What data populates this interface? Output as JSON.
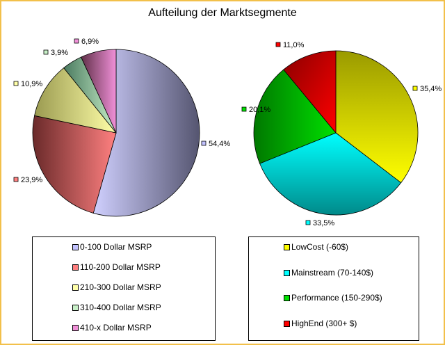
{
  "title": "Aufteilung der Marktsegmente",
  "chart_data": [
    {
      "type": "pie",
      "categories": [
        "0-100 Dollar MSRP",
        "110-200 Dollar MSRP",
        "210-300 Dollar MSRP",
        "310-400 Dollar MSRP",
        "410-x Dollar MSRP"
      ],
      "values": [
        54.4,
        23.9,
        10.9,
        3.9,
        6.9
      ],
      "labels": [
        "54,4%",
        "23,9%",
        "10,9%",
        "3,9%",
        "6,9%"
      ],
      "colors": [
        "#c3c3ff",
        "#ff8080",
        "#ffffa8",
        "#c8f0c8",
        "#f090d8"
      ],
      "shade_colors": [
        "#555570",
        "#6a2a2a",
        "#9a9a50",
        "#4a7a60",
        "#603048"
      ],
      "legend_position": "bottom"
    },
    {
      "type": "pie",
      "categories": [
        "LowCost (-60$)",
        "Mainstream (70-140$)",
        "Performance (150-290$)",
        "HighEnd (300+ $)"
      ],
      "values": [
        35.4,
        33.5,
        20.1,
        11.0
      ],
      "labels": [
        "35,4%",
        "33,5%",
        "20,1%",
        "11,0%"
      ],
      "colors": [
        "#ffff00",
        "#00ffff",
        "#00e000",
        "#ff0000"
      ],
      "shade_colors": [
        "#9a9a00",
        "#008a8a",
        "#007800",
        "#8a0000"
      ],
      "legend_position": "bottom"
    }
  ]
}
